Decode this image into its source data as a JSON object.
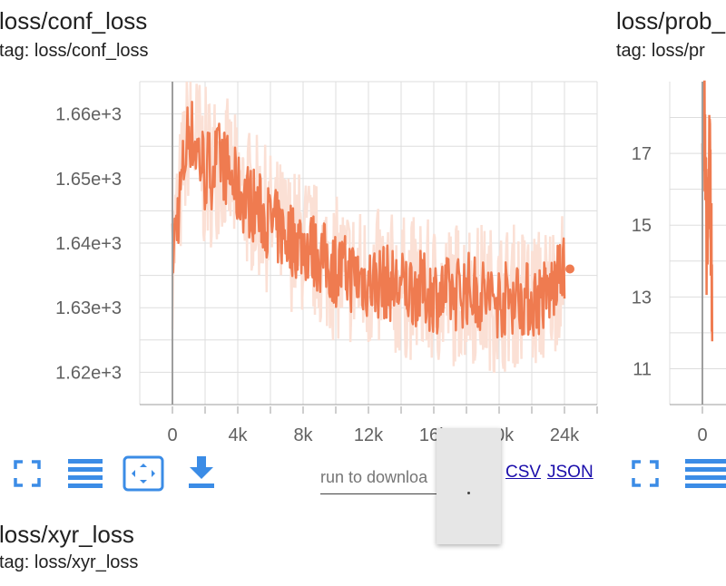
{
  "cards": [
    {
      "title": "loss/conf_loss",
      "tag": "tag: loss/conf_loss"
    },
    {
      "title": "loss/prob_",
      "tag": "tag: loss/pr"
    },
    {
      "title": "loss/xyr_loss",
      "tag": "tag: loss/xyr_loss"
    }
  ],
  "download": {
    "placeholder": "run to downloa",
    "csv_label": "CSV",
    "json_label": "JSON"
  },
  "colors": {
    "series": "#ef7b50",
    "series_raw": "#fbe0d5",
    "grid": "#dddddd",
    "axis": "#9e9e9e",
    "icon": "#3b8ce6"
  },
  "chart_data": [
    {
      "type": "line",
      "title": "loss/conf_loss",
      "xlabel": "",
      "ylabel": "",
      "xlim": [
        -2000,
        26000
      ],
      "ylim": [
        1615,
        1665
      ],
      "x_ticks": [
        0,
        2000,
        4000,
        6000,
        8000,
        10000,
        12000,
        14000,
        16000,
        18000,
        20000,
        22000,
        24000,
        26000
      ],
      "x_tick_labels": [
        "0",
        "",
        "4k",
        "",
        "8k",
        "",
        "12k",
        "",
        "16k",
        "",
        "20k",
        "",
        "24k",
        ""
      ],
      "y_ticks": [
        1615,
        1620,
        1625,
        1630,
        1635,
        1640,
        1645,
        1650,
        1655,
        1660,
        1665
      ],
      "y_tick_labels": [
        "",
        "1.62e+3",
        "",
        "1.63e+3",
        "",
        "1.64e+3",
        "",
        "1.65e+3",
        "",
        "1.66e+3",
        ""
      ],
      "grid": true,
      "series": [
        {
          "x": [
            0,
            1000,
            2000,
            3000,
            4000,
            5000,
            6000,
            7000,
            8000,
            9000,
            10000,
            11000,
            12000,
            13000,
            14000,
            15000,
            16000,
            17000,
            18000,
            19000,
            20000,
            21000,
            22000,
            23000,
            24000
          ],
          "y": [
            1638,
            1658,
            1651,
            1653,
            1648,
            1646,
            1643,
            1641,
            1640,
            1638,
            1636,
            1635,
            1634,
            1634,
            1633,
            1633,
            1632,
            1632,
            1633,
            1632,
            1631,
            1632,
            1631,
            1632,
            1636
          ],
          "spread": [
            6,
            6,
            7,
            6,
            6,
            6,
            6,
            6,
            6,
            6,
            6,
            6,
            6,
            6,
            6,
            6,
            6,
            6,
            6,
            6,
            6,
            6,
            6,
            6,
            5
          ]
        }
      ]
    },
    {
      "type": "line",
      "title": "loss/prob_",
      "xlabel": "",
      "ylabel": "",
      "xlim": [
        -2000,
        26000
      ],
      "ylim": [
        10,
        19
      ],
      "x_ticks": [
        0
      ],
      "x_tick_labels": [
        "0"
      ],
      "y_ticks": [
        11,
        12,
        13,
        14,
        15,
        16,
        17,
        18
      ],
      "y_tick_labels": [
        "11",
        "",
        "13",
        "",
        "15",
        "",
        "17",
        ""
      ],
      "grid": true,
      "series": [
        {
          "x": [
            0,
            150,
            300,
            450,
            600
          ],
          "y": [
            16,
            18.5,
            13.5,
            17,
            12.5
          ]
        }
      ]
    }
  ]
}
